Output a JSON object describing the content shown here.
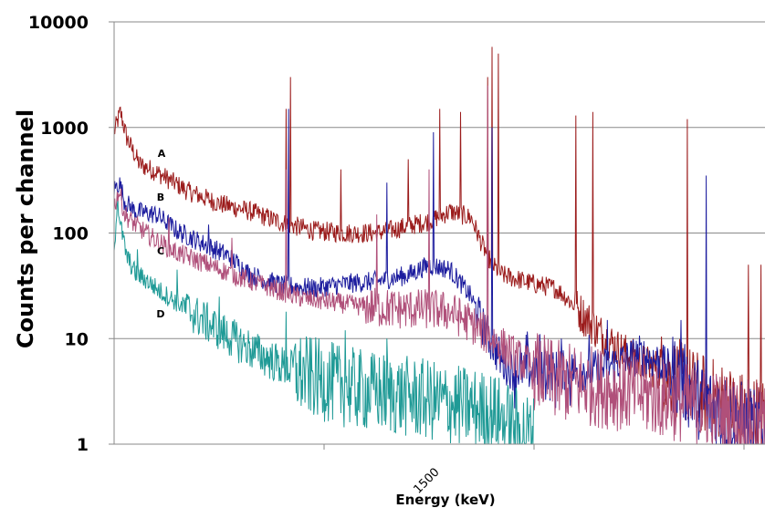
{
  "chart_data": {
    "type": "line",
    "title": "",
    "xlabel": "Energy (keV)",
    "ylabel": "Counts per channel",
    "yscale": "log",
    "ylim": [
      1,
      10000
    ],
    "xlim": [
      0,
      3100
    ],
    "y_ticks": [
      "1",
      "10",
      "100",
      "1000",
      "10000"
    ],
    "x_ticks": [
      "1500"
    ],
    "grid": "horizontal",
    "colors": {
      "A": "#9b1b1b",
      "B": "#1c1c9e",
      "C": "#b0507a",
      "D": "#1f9a96"
    },
    "series": [
      {
        "name": "A",
        "color": "#9b1b1b",
        "x": [
          0,
          30,
          60,
          120,
          200,
          350,
          500,
          650,
          800,
          950,
          1100,
          1250,
          1350,
          1500,
          1600,
          1700,
          1750,
          1800,
          1850,
          2000,
          2100,
          2150,
          2300,
          2400,
          2500,
          2600,
          2700,
          2800,
          2900,
          3000,
          3100
        ],
        "y": [
          900,
          1400,
          800,
          450,
          380,
          250,
          190,
          160,
          125,
          105,
          100,
          100,
          110,
          130,
          160,
          140,
          80,
          50,
          40,
          33,
          30,
          25,
          12,
          8,
          6,
          5,
          4,
          3,
          2.5,
          2,
          1.8
        ],
        "peaks": [
          [
            600,
            180
          ],
          [
            820,
            1500
          ],
          [
            840,
            3000
          ],
          [
            1080,
            400
          ],
          [
            1400,
            500
          ],
          [
            1550,
            1500
          ],
          [
            1650,
            1400
          ],
          [
            1780,
            3000
          ],
          [
            1800,
            5800
          ],
          [
            1830,
            5000
          ],
          [
            2200,
            1300
          ],
          [
            2280,
            1400
          ],
          [
            2730,
            1200
          ],
          [
            3020,
            50
          ],
          [
            3080,
            50
          ]
        ]
      },
      {
        "name": "B",
        "color": "#1c1c9e",
        "x": [
          0,
          25,
          50,
          100,
          200,
          300,
          450,
          550,
          650,
          800,
          950,
          1100,
          1250,
          1400,
          1500,
          1600,
          1700,
          1750,
          1800,
          1850,
          1900,
          2100,
          2300,
          2500,
          2600,
          2700,
          2800,
          2900,
          3000,
          3100
        ],
        "y": [
          260,
          300,
          200,
          160,
          150,
          105,
          75,
          60,
          40,
          32,
          30,
          33,
          35,
          40,
          50,
          45,
          25,
          14,
          9,
          6,
          5,
          5,
          5,
          7,
          6,
          4,
          2.5,
          2,
          1.6,
          1.2
        ],
        "peaks": [
          [
            450,
            120
          ],
          [
            830,
            1500
          ],
          [
            1300,
            300
          ],
          [
            1520,
            900
          ],
          [
            1800,
            1000
          ],
          [
            2350,
            15
          ],
          [
            2700,
            15
          ],
          [
            2820,
            350
          ]
        ]
      },
      {
        "name": "C",
        "color": "#b0507a",
        "x": [
          0,
          25,
          50,
          100,
          200,
          300,
          450,
          600,
          750,
          900,
          1050,
          1200,
          1350,
          1500,
          1600,
          1700,
          1800,
          1900,
          2000,
          2100,
          2300,
          2500,
          2700,
          2900,
          3100
        ],
        "y": [
          180,
          250,
          150,
          120,
          85,
          65,
          50,
          38,
          30,
          24,
          22,
          20,
          19,
          19,
          18,
          14,
          10,
          7,
          5,
          4,
          3.5,
          3,
          2.5,
          2,
          1.5
        ],
        "peaks": [
          [
            260,
            140
          ],
          [
            560,
            90
          ],
          [
            820,
            400
          ],
          [
            1250,
            150
          ],
          [
            1500,
            400
          ],
          [
            1780,
            2500
          ]
        ]
      },
      {
        "name": "D",
        "color": "#1f9a96",
        "x": [
          0,
          15,
          30,
          60,
          100,
          160,
          220,
          300,
          400,
          500,
          600,
          700,
          800,
          900,
          1000,
          1100,
          1200,
          1300,
          1400,
          1500,
          1600,
          1700,
          1800,
          1900,
          2000
        ],
        "y": [
          60,
          220,
          120,
          60,
          42,
          35,
          28,
          22,
          16,
          12,
          9,
          7,
          5.5,
          4.5,
          4,
          3.5,
          3.2,
          3,
          2.8,
          2.6,
          2.4,
          2.2,
          2,
          1.5,
          1.2
        ],
        "peaks": [
          [
            110,
            70
          ],
          [
            300,
            45
          ],
          [
            500,
            25
          ],
          [
            820,
            18
          ],
          [
            1100,
            12
          ],
          [
            1300,
            10
          ]
        ]
      }
    ]
  }
}
